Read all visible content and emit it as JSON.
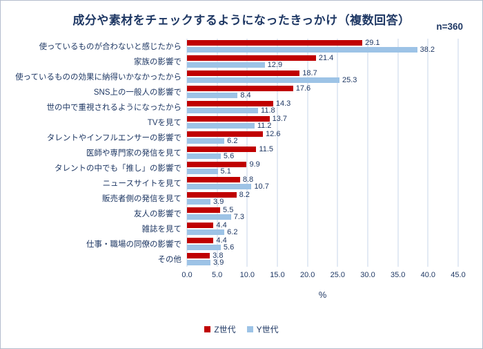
{
  "header": {
    "title": "成分や素材をチェックするようになったきっかけ（複数回答）",
    "sample_size": "n=360"
  },
  "colors": {
    "title_text": "#1f3864",
    "series_z": "#c00000",
    "series_y": "#9dc3e6",
    "gridline": "#c7d6e9"
  },
  "chart_data": {
    "type": "bar",
    "orientation": "horizontal",
    "title": "成分や素材をチェックするようになったきっかけ（複数回答）",
    "annotation": "n=360",
    "categories": [
      "使っているものが合わないと感じたから",
      "家族の影響で",
      "使っているものの効果に納得いかなかったから",
      "SNS上の一般人の影響で",
      "世の中で重視されるようになったから",
      "TVを見て",
      "タレントやインフルエンサーの影響で",
      "医師や専門家の発信を見て",
      "タレントの中でも「推し」の影響で",
      "ニュースサイトを見て",
      "販売者側の発信を見て",
      "友人の影響で",
      "雑誌を見て",
      "仕事・職場の同僚の影響で",
      "その他"
    ],
    "series": [
      {
        "name": "Z世代",
        "color": "#c00000",
        "values": [
          29.1,
          21.4,
          18.7,
          17.6,
          14.3,
          13.7,
          12.6,
          11.5,
          9.9,
          8.8,
          8.2,
          5.5,
          4.4,
          4.4,
          3.8
        ]
      },
      {
        "name": "Y世代",
        "color": "#9dc3e6",
        "values": [
          38.2,
          12.9,
          25.3,
          8.4,
          11.8,
          11.2,
          6.2,
          5.6,
          5.1,
          10.7,
          3.9,
          7.3,
          6.2,
          5.6,
          3.9
        ]
      }
    ],
    "xlabel": "%",
    "xlim": [
      0,
      45
    ],
    "xticks": [
      "0.0",
      "5.0",
      "10.0",
      "15.0",
      "20.0",
      "25.0",
      "30.0",
      "35.0",
      "40.0",
      "45.0"
    ],
    "grid": true,
    "legend_position": "bottom"
  }
}
